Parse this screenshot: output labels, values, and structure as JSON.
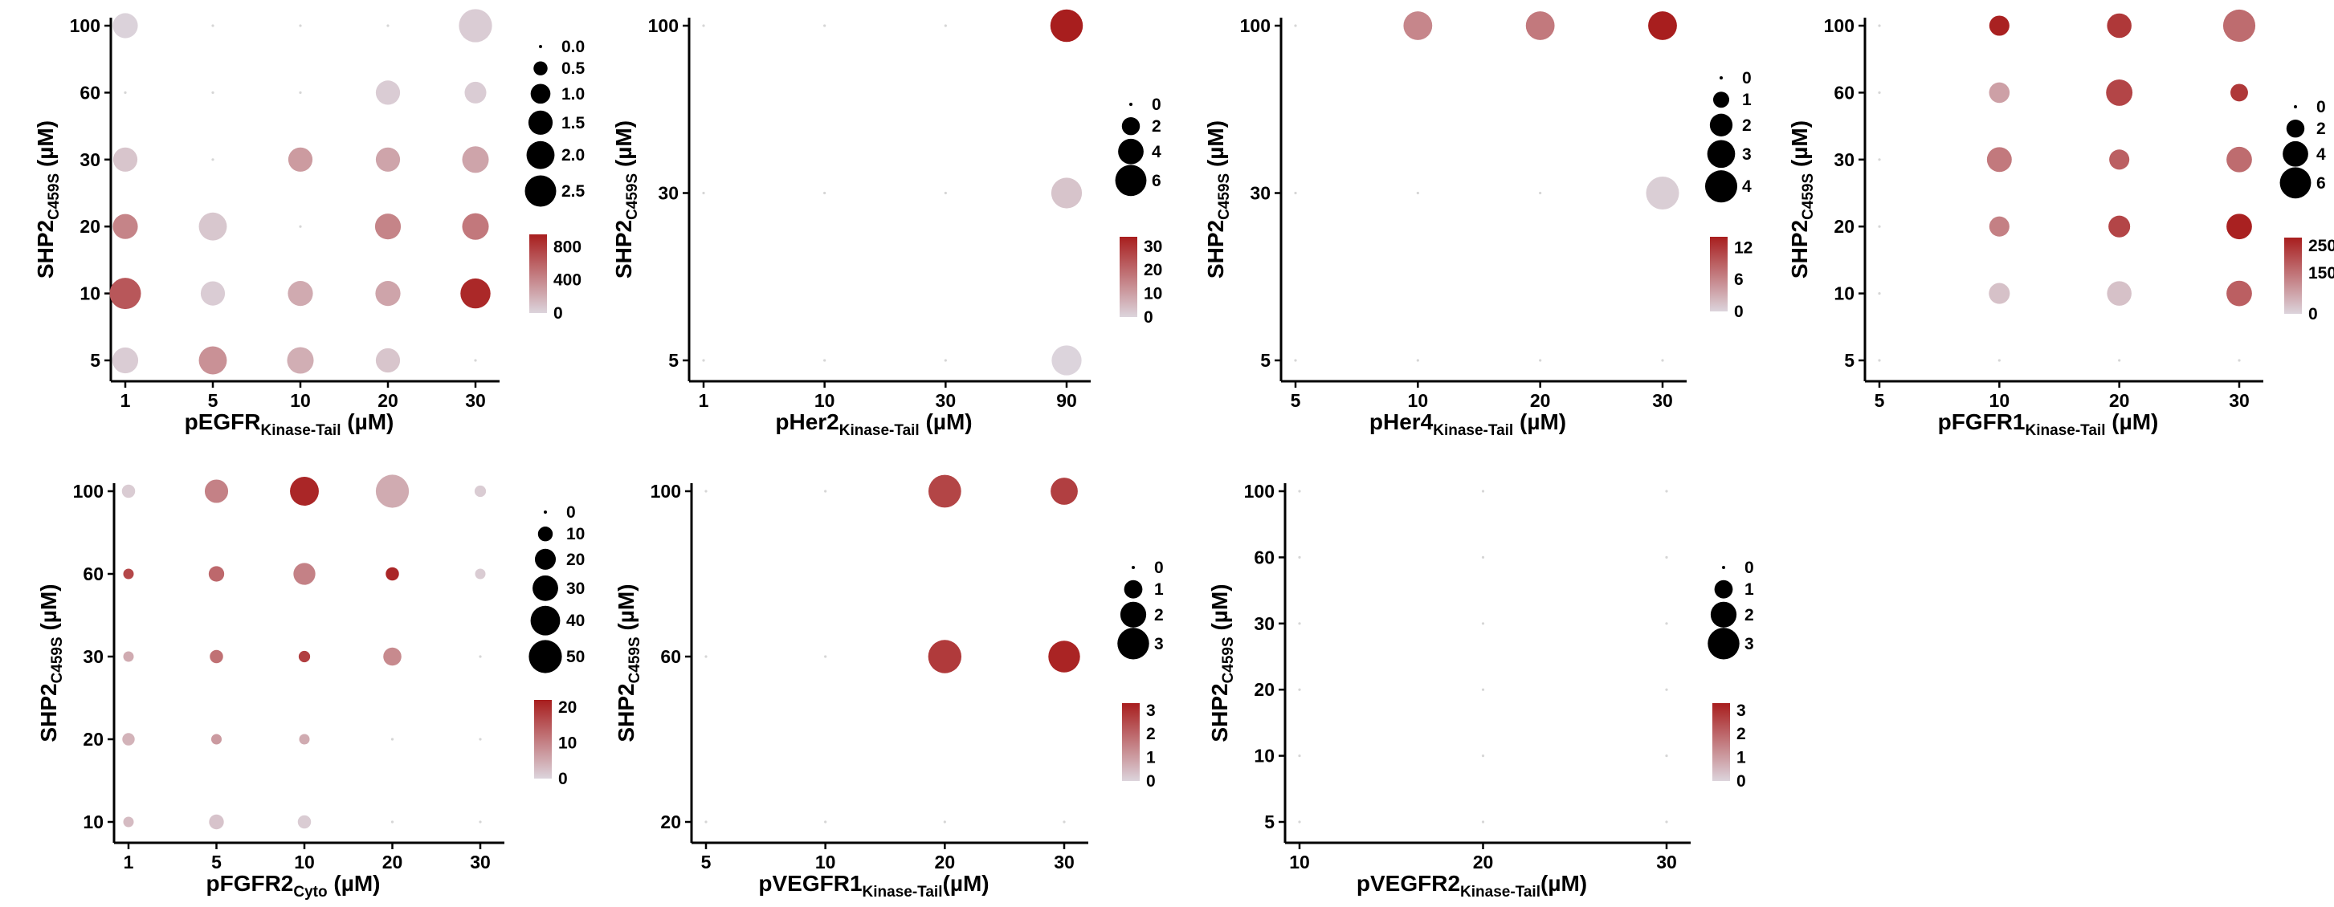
{
  "colors": {
    "low": "#dcd4dc",
    "high": "#a81e1e",
    "axis": "#000000",
    "size_key": "#000000"
  },
  "chart_data": [
    {
      "type": "scatter",
      "x_prefix": "pEGFR",
      "x_sub": "Kinase-Tail",
      "x_suffix": " (µM)",
      "y_prefix": "SHP2",
      "y_sub": "C459S",
      "y_suffix": " (µM)",
      "x_ticks": [
        "1",
        "5",
        "10",
        "20",
        "30"
      ],
      "y_ticks": [
        "5",
        "10",
        "20",
        "30",
        "60",
        "100"
      ],
      "size_legend": [
        "0.0",
        "0.5",
        "1.0",
        "1.5",
        "2.0",
        "2.5"
      ],
      "size_max": 2.9,
      "color_ticks": [
        "800",
        "400",
        "0"
      ],
      "color_range": [
        0,
        950
      ],
      "points": [
        {
          "x": "1",
          "y": "100",
          "size": 1.6,
          "color": 10
        },
        {
          "x": "30",
          "y": "100",
          "size": 2.8,
          "color": 40
        },
        {
          "x": "20",
          "y": "60",
          "size": 1.5,
          "color": 40
        },
        {
          "x": "30",
          "y": "60",
          "size": 1.2,
          "color": 40
        },
        {
          "x": "1",
          "y": "30",
          "size": 1.5,
          "color": 80
        },
        {
          "x": "10",
          "y": "30",
          "size": 1.5,
          "color": 300
        },
        {
          "x": "20",
          "y": "30",
          "size": 1.5,
          "color": 250
        },
        {
          "x": "30",
          "y": "30",
          "size": 1.8,
          "color": 250
        },
        {
          "x": "1",
          "y": "20",
          "size": 1.6,
          "color": 420
        },
        {
          "x": "5",
          "y": "20",
          "size": 2.0,
          "color": 70
        },
        {
          "x": "20",
          "y": "20",
          "size": 1.7,
          "color": 420
        },
        {
          "x": "30",
          "y": "20",
          "size": 1.8,
          "color": 480
        },
        {
          "x": "1",
          "y": "10",
          "size": 2.5,
          "color": 650
        },
        {
          "x": "5",
          "y": "10",
          "size": 1.5,
          "color": 40
        },
        {
          "x": "10",
          "y": "10",
          "size": 1.6,
          "color": 220
        },
        {
          "x": "20",
          "y": "10",
          "size": 1.6,
          "color": 250
        },
        {
          "x": "30",
          "y": "10",
          "size": 2.3,
          "color": 900
        },
        {
          "x": "1",
          "y": "5",
          "size": 1.7,
          "color": 40
        },
        {
          "x": "5",
          "y": "5",
          "size": 2.0,
          "color": 350
        },
        {
          "x": "10",
          "y": "5",
          "size": 1.8,
          "color": 200
        },
        {
          "x": "20",
          "y": "5",
          "size": 1.5,
          "color": 80
        }
      ]
    },
    {
      "type": "scatter",
      "x_prefix": "pHer2",
      "x_sub": "Kinase-Tail",
      "x_suffix": " (µM)",
      "y_prefix": "SHP2",
      "y_sub": "C459S",
      "y_suffix": " (µM)",
      "x_ticks": [
        "1",
        "10",
        "30",
        "90"
      ],
      "y_ticks": [
        "5",
        "30",
        "100"
      ],
      "size_legend": [
        "0",
        "2",
        "4",
        "6"
      ],
      "size_max": 7,
      "color_ticks": [
        "30",
        "20",
        "10",
        "0"
      ],
      "color_range": [
        0,
        34
      ],
      "points": [
        {
          "x": "90",
          "y": "100",
          "size": 6.5,
          "color": 34
        },
        {
          "x": "90",
          "y": "30",
          "size": 5.8,
          "color": 3
        },
        {
          "x": "90",
          "y": "5",
          "size": 5.5,
          "color": 0
        }
      ]
    },
    {
      "type": "scatter",
      "x_prefix": "pHer4",
      "x_sub": "Kinase-Tail",
      "x_suffix": " (µM)",
      "y_prefix": "SHP2",
      "y_sub": "C459S",
      "y_suffix": " (µM)",
      "x_ticks": [
        "5",
        "10",
        "20",
        "30"
      ],
      "y_ticks": [
        "5",
        "30",
        "100"
      ],
      "size_legend": [
        "0",
        "1",
        "2",
        "3",
        "4"
      ],
      "size_max": 4.4,
      "color_ticks": [
        "12",
        "6",
        "0"
      ],
      "color_range": [
        0,
        14
      ],
      "points": [
        {
          "x": "10",
          "y": "100",
          "size": 3.2,
          "color": 6
        },
        {
          "x": "20",
          "y": "100",
          "size": 3.2,
          "color": 7
        },
        {
          "x": "30",
          "y": "100",
          "size": 3.2,
          "color": 14
        },
        {
          "x": "30",
          "y": "30",
          "size": 4.2,
          "color": 0.5
        }
      ]
    },
    {
      "type": "scatter",
      "x_prefix": "pFGFR1",
      "x_sub": "Kinase-Tail",
      "x_suffix": " (µM)",
      "y_prefix": "SHP2",
      "y_sub": "C459S",
      "y_suffix": " (µM)",
      "x_ticks": [
        "5",
        "10",
        "20",
        "30"
      ],
      "y_ticks": [
        "5",
        "10",
        "20",
        "30",
        "60",
        "100"
      ],
      "size_legend": [
        "0",
        "2",
        "4",
        "6"
      ],
      "size_max": 7,
      "color_ticks": [
        "250",
        "150",
        "0"
      ],
      "color_range": [
        0,
        280
      ],
      "points": [
        {
          "x": "10",
          "y": "100",
          "size": 2.5,
          "color": 275
        },
        {
          "x": "20",
          "y": "100",
          "size": 3.7,
          "color": 240
        },
        {
          "x": "30",
          "y": "100",
          "size": 6.4,
          "color": 160
        },
        {
          "x": "10",
          "y": "60",
          "size": 2.6,
          "color": 80
        },
        {
          "x": "20",
          "y": "60",
          "size": 4.3,
          "color": 220
        },
        {
          "x": "30",
          "y": "60",
          "size": 1.9,
          "color": 240
        },
        {
          "x": "10",
          "y": "30",
          "size": 3.8,
          "color": 140
        },
        {
          "x": "20",
          "y": "30",
          "size": 2.5,
          "color": 180
        },
        {
          "x": "30",
          "y": "30",
          "size": 4.0,
          "color": 160
        },
        {
          "x": "10",
          "y": "20",
          "size": 2.5,
          "color": 130
        },
        {
          "x": "20",
          "y": "20",
          "size": 2.9,
          "color": 220
        },
        {
          "x": "30",
          "y": "20",
          "size": 4.0,
          "color": 275
        },
        {
          "x": "10",
          "y": "10",
          "size": 2.7,
          "color": 30
        },
        {
          "x": "20",
          "y": "10",
          "size": 3.7,
          "color": 30
        },
        {
          "x": "30",
          "y": "10",
          "size": 4.0,
          "color": 180
        }
      ]
    },
    {
      "type": "scatter",
      "x_prefix": "pFGFR2",
      "x_sub": "Cyto",
      "x_suffix": " (µM)",
      "y_prefix": "SHP2",
      "y_sub": "C459S",
      "y_suffix": " (µM)",
      "x_ticks": [
        "1",
        "5",
        "10",
        "20",
        "30"
      ],
      "y_ticks": [
        "10",
        "20",
        "30",
        "60",
        "100"
      ],
      "size_legend": [
        "0",
        "10",
        "20",
        "30",
        "40",
        "50"
      ],
      "size_max": 52,
      "color_ticks": [
        "20",
        "10",
        "0"
      ],
      "color_range": [
        0,
        22
      ],
      "points": [
        {
          "x": "1",
          "y": "100",
          "size": 8,
          "color": 1
        },
        {
          "x": "5",
          "y": "100",
          "size": 25,
          "color": 10
        },
        {
          "x": "10",
          "y": "100",
          "size": 38,
          "color": 21
        },
        {
          "x": "20",
          "y": "100",
          "size": 50,
          "color": 5
        },
        {
          "x": "30",
          "y": "100",
          "size": 6,
          "color": 1
        },
        {
          "x": "1",
          "y": "60",
          "size": 5,
          "color": 17
        },
        {
          "x": "5",
          "y": "60",
          "size": 11,
          "color": 13
        },
        {
          "x": "10",
          "y": "60",
          "size": 22,
          "color": 10
        },
        {
          "x": "20",
          "y": "60",
          "size": 8,
          "color": 21
        },
        {
          "x": "30",
          "y": "60",
          "size": 5,
          "color": 1
        },
        {
          "x": "1",
          "y": "30",
          "size": 5,
          "color": 5
        },
        {
          "x": "5",
          "y": "30",
          "size": 8,
          "color": 12
        },
        {
          "x": "10",
          "y": "30",
          "size": 6,
          "color": 18
        },
        {
          "x": "20",
          "y": "30",
          "size": 15,
          "color": 9
        },
        {
          "x": "1",
          "y": "20",
          "size": 7,
          "color": 4
        },
        {
          "x": "5",
          "y": "20",
          "size": 5,
          "color": 7
        },
        {
          "x": "10",
          "y": "20",
          "size": 5,
          "color": 5
        },
        {
          "x": "1",
          "y": "10",
          "size": 5,
          "color": 3
        },
        {
          "x": "5",
          "y": "10",
          "size": 10,
          "color": 2
        },
        {
          "x": "10",
          "y": "10",
          "size": 8,
          "color": 1
        }
      ]
    },
    {
      "type": "scatter",
      "x_prefix": "pVEGFR1",
      "x_sub": "Kinase-Tail",
      "x_suffix": "(µM)",
      "y_prefix": "SHP2",
      "y_sub": "C459S",
      "y_suffix": " (µM)",
      "x_ticks": [
        "5",
        "10",
        "20",
        "30"
      ],
      "y_ticks": [
        "20",
        "60",
        "100"
      ],
      "size_legend": [
        "0",
        "1",
        "2",
        "3"
      ],
      "size_max": 3.4,
      "color_ticks": [
        "3",
        "2",
        "1",
        "0"
      ],
      "color_range": [
        0,
        3.3
      ],
      "points": [
        {
          "x": "20",
          "y": "100",
          "size": 3.2,
          "color": 2.6
        },
        {
          "x": "30",
          "y": "100",
          "size": 2.2,
          "color": 2.7
        },
        {
          "x": "20",
          "y": "60",
          "size": 3.3,
          "color": 2.8
        },
        {
          "x": "30",
          "y": "60",
          "size": 3.0,
          "color": 3.2
        }
      ]
    },
    {
      "type": "scatter",
      "x_prefix": "pVEGFR2",
      "x_sub": "Kinase-Tail",
      "x_suffix": "(µM)",
      "y_prefix": "SHP2",
      "y_sub": "C459S",
      "y_suffix": " (µM)",
      "x_ticks": [
        "10",
        "20",
        "30"
      ],
      "y_ticks": [
        "5",
        "10",
        "20",
        "30",
        "60",
        "100"
      ],
      "size_legend": [
        "0",
        "1",
        "2",
        "3"
      ],
      "size_max": 3.4,
      "color_ticks": [
        "3",
        "2",
        "1",
        "0"
      ],
      "color_range": [
        0,
        3.3
      ],
      "points": []
    }
  ]
}
